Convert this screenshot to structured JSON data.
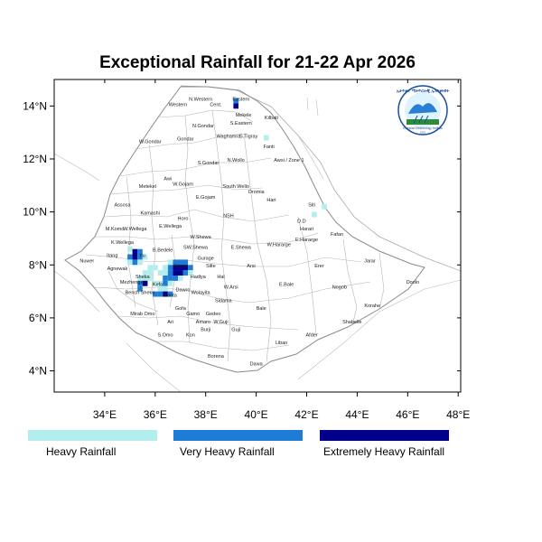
{
  "title": "Exceptional Rainfall for 21-22 Apr 2026",
  "logo": {
    "text_top": "ኢትዮጵያ ሜትዮሮሎጂ ኢንስቲትዩት",
    "text_bottom": "Ethiopian Meteorology Institute",
    "year": "1951"
  },
  "axes": {
    "x_ticks": [
      "34°E",
      "36°E",
      "38°E",
      "40°E",
      "42°E",
      "44°E",
      "46°E",
      "48°E"
    ],
    "y_ticks": [
      "14°N",
      "12°N",
      "10°N",
      "8°N",
      "6°N",
      "4°N"
    ],
    "lon_range": [
      32.0,
      48.1
    ],
    "lat_range": [
      3.2,
      15.0
    ]
  },
  "legend": [
    {
      "label": "Heavy Rainfall",
      "color": "#b2eeee"
    },
    {
      "label": "Very Heavy Rainfall",
      "color": "#1e7bd6"
    },
    {
      "label": "Extremely Heavy Rainfall",
      "color": "#00008b"
    }
  ],
  "zones": [
    {
      "name": "Western",
      "lon": 36.9,
      "lat": 14.0
    },
    {
      "name": "N.Western",
      "lon": 37.8,
      "lat": 14.2
    },
    {
      "name": "Cent.",
      "lon": 38.4,
      "lat": 14.0
    },
    {
      "name": "Eastern",
      "lon": 39.4,
      "lat": 14.2
    },
    {
      "name": "Mekele",
      "lon": 39.5,
      "lat": 13.6
    },
    {
      "name": "Kilbati",
      "lon": 40.6,
      "lat": 13.5
    },
    {
      "name": "S.Eastern",
      "lon": 39.4,
      "lat": 13.3
    },
    {
      "name": "N.Gondar",
      "lon": 37.9,
      "lat": 13.2
    },
    {
      "name": "Waghamra",
      "lon": 38.9,
      "lat": 12.8
    },
    {
      "name": "S.Tigray",
      "lon": 39.7,
      "lat": 12.8
    },
    {
      "name": "W.Gondar",
      "lon": 35.8,
      "lat": 12.6
    },
    {
      "name": "Gondar",
      "lon": 37.2,
      "lat": 12.7
    },
    {
      "name": "Fanti",
      "lon": 40.5,
      "lat": 12.4
    },
    {
      "name": "Awsi / Zone 1",
      "lon": 41.3,
      "lat": 11.9
    },
    {
      "name": "N.Wollo",
      "lon": 39.2,
      "lat": 11.9
    },
    {
      "name": "S.Gondar",
      "lon": 38.1,
      "lat": 11.8
    },
    {
      "name": "Metekel",
      "lon": 35.7,
      "lat": 10.9
    },
    {
      "name": "Awi",
      "lon": 36.5,
      "lat": 11.2
    },
    {
      "name": "W.Gojam",
      "lon": 37.1,
      "lat": 11.0
    },
    {
      "name": "South Wello",
      "lon": 39.2,
      "lat": 10.9
    },
    {
      "name": "Oromia",
      "lon": 40.0,
      "lat": 10.7
    },
    {
      "name": "E.Gojam",
      "lon": 38.0,
      "lat": 10.5
    },
    {
      "name": "Hari",
      "lon": 40.6,
      "lat": 10.4
    },
    {
      "name": "Siti",
      "lon": 42.2,
      "lat": 10.2
    },
    {
      "name": "Assosa",
      "lon": 34.7,
      "lat": 10.2
    },
    {
      "name": "Kamashi",
      "lon": 35.8,
      "lat": 9.9
    },
    {
      "name": "Horo",
      "lon": 37.1,
      "lat": 9.7
    },
    {
      "name": "NSH",
      "lon": 38.9,
      "lat": 9.8
    },
    {
      "name": "D.D",
      "lon": 41.8,
      "lat": 9.6
    },
    {
      "name": "Harari",
      "lon": 42.0,
      "lat": 9.3
    },
    {
      "name": "Fafan",
      "lon": 43.2,
      "lat": 9.1
    },
    {
      "name": "M.Komo",
      "lon": 34.4,
      "lat": 9.3
    },
    {
      "name": "W.Wellega",
      "lon": 35.2,
      "lat": 9.3
    },
    {
      "name": "E.Wellega",
      "lon": 36.6,
      "lat": 9.4
    },
    {
      "name": "W.Shewa",
      "lon": 37.8,
      "lat": 9.0
    },
    {
      "name": "E.Shewa",
      "lon": 39.4,
      "lat": 8.6
    },
    {
      "name": "W.Hararge",
      "lon": 40.9,
      "lat": 8.7
    },
    {
      "name": "E.Hararge",
      "lon": 42.0,
      "lat": 8.9
    },
    {
      "name": "K.Wellega",
      "lon": 34.7,
      "lat": 8.8
    },
    {
      "name": "Jarar",
      "lon": 44.5,
      "lat": 8.1
    },
    {
      "name": "SW.Shewa",
      "lon": 37.6,
      "lat": 8.6
    },
    {
      "name": "Nuwer",
      "lon": 33.3,
      "lat": 8.1
    },
    {
      "name": "Itang",
      "lon": 34.3,
      "lat": 8.3
    },
    {
      "name": "Ilu",
      "lon": 35.5,
      "lat": 8.3
    },
    {
      "name": "B.Bedele",
      "lon": 36.3,
      "lat": 8.5
    },
    {
      "name": "Gurage",
      "lon": 38.0,
      "lat": 8.2
    },
    {
      "name": "Arsi",
      "lon": 39.8,
      "lat": 7.9
    },
    {
      "name": "Erer",
      "lon": 42.5,
      "lat": 7.9
    },
    {
      "name": "Agnewak",
      "lon": 34.5,
      "lat": 7.8
    },
    {
      "name": "Sheka",
      "lon": 35.5,
      "lat": 7.5
    },
    {
      "name": "Silte",
      "lon": 38.2,
      "lat": 7.9
    },
    {
      "name": "Hal",
      "lon": 38.6,
      "lat": 7.5
    },
    {
      "name": "Jimma",
      "lon": 37.0,
      "lat": 7.9
    },
    {
      "name": "Hadiya",
      "lon": 37.7,
      "lat": 7.5
    },
    {
      "name": "E.Bale",
      "lon": 41.2,
      "lat": 7.2
    },
    {
      "name": "Nogob",
      "lon": 43.3,
      "lat": 7.1
    },
    {
      "name": "Doolo",
      "lon": 46.2,
      "lat": 7.3
    },
    {
      "name": "Mezhenger",
      "lon": 35.1,
      "lat": 7.3
    },
    {
      "name": "Bench Sheko",
      "lon": 35.4,
      "lat": 6.9
    },
    {
      "name": "Kefa",
      "lon": 36.1,
      "lat": 7.2
    },
    {
      "name": "Konta",
      "lon": 36.6,
      "lat": 6.8
    },
    {
      "name": "Dawro",
      "lon": 37.1,
      "lat": 7.0
    },
    {
      "name": "Wolayita",
      "lon": 37.8,
      "lat": 6.9
    },
    {
      "name": "W.Arsi",
      "lon": 39.0,
      "lat": 7.1
    },
    {
      "name": "Sidama",
      "lon": 38.7,
      "lat": 6.6
    },
    {
      "name": "Korahe",
      "lon": 44.6,
      "lat": 6.4
    },
    {
      "name": "Gofa",
      "lon": 37.0,
      "lat": 6.3
    },
    {
      "name": "Bale",
      "lon": 40.2,
      "lat": 6.3
    },
    {
      "name": "Mirab Omo",
      "lon": 35.5,
      "lat": 6.1
    },
    {
      "name": "Gamo",
      "lon": 37.5,
      "lat": 6.1
    },
    {
      "name": "Gedeo",
      "lon": 38.3,
      "lat": 6.1
    },
    {
      "name": "Shabelle",
      "lon": 43.8,
      "lat": 5.8
    },
    {
      "name": "Ari",
      "lon": 36.6,
      "lat": 5.8
    },
    {
      "name": "Amaro",
      "lon": 37.9,
      "lat": 5.8
    },
    {
      "name": "W.Guji",
      "lon": 38.6,
      "lat": 5.8
    },
    {
      "name": "Guji",
      "lon": 39.2,
      "lat": 5.5
    },
    {
      "name": "Burji",
      "lon": 38.0,
      "lat": 5.5
    },
    {
      "name": "S.Omo",
      "lon": 36.4,
      "lat": 5.3
    },
    {
      "name": "Kon",
      "lon": 37.4,
      "lat": 5.3
    },
    {
      "name": "Liban",
      "lon": 41.0,
      "lat": 5.0
    },
    {
      "name": "Afder",
      "lon": 42.2,
      "lat": 5.3
    },
    {
      "name": "Borena",
      "lon": 38.4,
      "lat": 4.5
    },
    {
      "name": "Dawa",
      "lon": 40.0,
      "lat": 4.2
    }
  ],
  "rainfall_cells": [
    {
      "lon": 39.2,
      "lat": 14.2,
      "level": 2
    },
    {
      "lon": 39.2,
      "lat": 14.0,
      "level": 3
    },
    {
      "lon": 40.4,
      "lat": 12.8,
      "level": 1
    },
    {
      "lon": 42.7,
      "lat": 10.2,
      "level": 1
    },
    {
      "lon": 42.3,
      "lat": 9.9,
      "level": 1
    },
    {
      "lon": 35.0,
      "lat": 8.6,
      "level": 1
    },
    {
      "lon": 35.2,
      "lat": 8.5,
      "level": 3
    },
    {
      "lon": 35.4,
      "lat": 8.5,
      "level": 2
    },
    {
      "lon": 35.0,
      "lat": 8.3,
      "level": 2
    },
    {
      "lon": 35.2,
      "lat": 8.3,
      "level": 3
    },
    {
      "lon": 35.4,
      "lat": 8.3,
      "level": 2
    },
    {
      "lon": 35.6,
      "lat": 8.3,
      "level": 1
    },
    {
      "lon": 35.0,
      "lat": 8.1,
      "level": 1
    },
    {
      "lon": 35.2,
      "lat": 8.1,
      "level": 2
    },
    {
      "lon": 35.4,
      "lat": 8.1,
      "level": 1
    },
    {
      "lon": 35.8,
      "lat": 7.9,
      "level": 1
    },
    {
      "lon": 36.0,
      "lat": 7.9,
      "level": 1
    },
    {
      "lon": 35.6,
      "lat": 7.7,
      "level": 1
    },
    {
      "lon": 35.8,
      "lat": 7.7,
      "level": 1
    },
    {
      "lon": 35.4,
      "lat": 7.5,
      "level": 1
    },
    {
      "lon": 35.6,
      "lat": 7.5,
      "level": 1
    },
    {
      "lon": 35.8,
      "lat": 7.5,
      "level": 1
    },
    {
      "lon": 35.4,
      "lat": 7.3,
      "level": 2
    },
    {
      "lon": 35.6,
      "lat": 7.3,
      "level": 3
    },
    {
      "lon": 35.4,
      "lat": 7.1,
      "level": 2
    },
    {
      "lon": 36.2,
      "lat": 7.7,
      "level": 1
    },
    {
      "lon": 36.4,
      "lat": 7.7,
      "level": 1
    },
    {
      "lon": 36.6,
      "lat": 8.1,
      "level": 1
    },
    {
      "lon": 36.8,
      "lat": 8.1,
      "level": 2
    },
    {
      "lon": 37.0,
      "lat": 8.1,
      "level": 2
    },
    {
      "lon": 37.2,
      "lat": 8.1,
      "level": 2
    },
    {
      "lon": 36.6,
      "lat": 7.9,
      "level": 2
    },
    {
      "lon": 36.8,
      "lat": 7.9,
      "level": 3
    },
    {
      "lon": 37.0,
      "lat": 7.9,
      "level": 3
    },
    {
      "lon": 37.2,
      "lat": 7.9,
      "level": 3
    },
    {
      "lon": 37.4,
      "lat": 7.9,
      "level": 2
    },
    {
      "lon": 36.4,
      "lat": 7.9,
      "level": 1
    },
    {
      "lon": 36.6,
      "lat": 7.7,
      "level": 2
    },
    {
      "lon": 36.8,
      "lat": 7.7,
      "level": 3
    },
    {
      "lon": 37.0,
      "lat": 7.7,
      "level": 3
    },
    {
      "lon": 37.2,
      "lat": 7.7,
      "level": 2
    },
    {
      "lon": 37.4,
      "lat": 7.7,
      "level": 1
    },
    {
      "lon": 36.4,
      "lat": 7.5,
      "level": 2
    },
    {
      "lon": 36.6,
      "lat": 7.5,
      "level": 2
    },
    {
      "lon": 36.8,
      "lat": 7.5,
      "level": 2
    },
    {
      "lon": 37.0,
      "lat": 7.5,
      "level": 1
    },
    {
      "lon": 36.0,
      "lat": 7.3,
      "level": 1
    },
    {
      "lon": 36.2,
      "lat": 7.3,
      "level": 1
    },
    {
      "lon": 36.4,
      "lat": 7.3,
      "level": 2
    },
    {
      "lon": 36.6,
      "lat": 7.3,
      "level": 1
    },
    {
      "lon": 36.2,
      "lat": 7.1,
      "level": 1
    },
    {
      "lon": 36.4,
      "lat": 7.1,
      "level": 1
    },
    {
      "lon": 36.0,
      "lat": 6.9,
      "level": 2
    },
    {
      "lon": 36.2,
      "lat": 6.9,
      "level": 2
    },
    {
      "lon": 36.4,
      "lat": 6.9,
      "level": 3
    },
    {
      "lon": 36.6,
      "lat": 6.9,
      "level": 2
    }
  ]
}
